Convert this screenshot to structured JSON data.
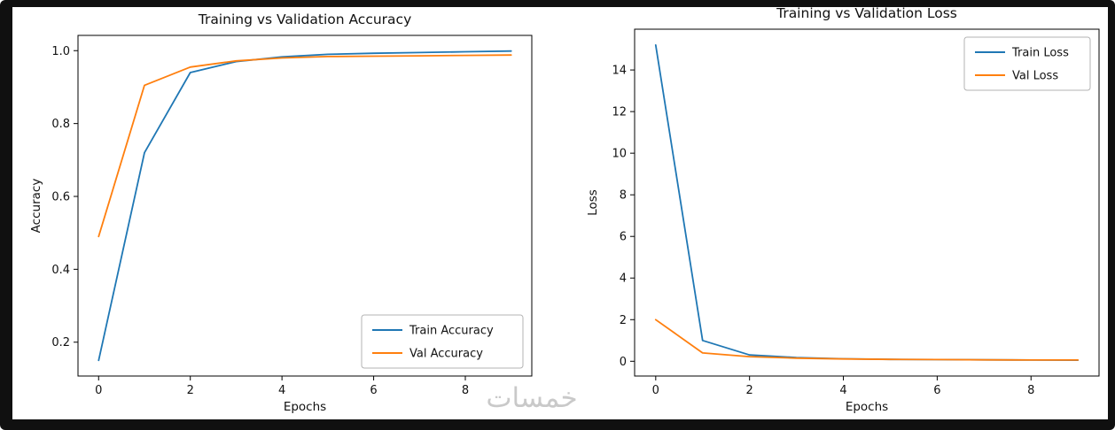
{
  "watermark": "خمسات",
  "colors": {
    "train": "#1f77b4",
    "val": "#ff7f0e"
  },
  "chart_data": [
    {
      "type": "line",
      "title": "Training vs Validation Accuracy",
      "xlabel": "Epochs",
      "ylabel": "Accuracy",
      "x": [
        0,
        1,
        2,
        3,
        4,
        5,
        6,
        7,
        8,
        9
      ],
      "series": [
        {
          "name": "Train Accuracy",
          "color": "#1f77b4",
          "values": [
            0.15,
            0.72,
            0.94,
            0.97,
            0.983,
            0.99,
            0.993,
            0.995,
            0.997,
            0.999
          ]
        },
        {
          "name": "Val Accuracy",
          "color": "#ff7f0e",
          "values": [
            0.49,
            0.905,
            0.955,
            0.972,
            0.98,
            0.984,
            0.985,
            0.986,
            0.987,
            0.988
          ]
        }
      ],
      "xlim": [
        -0.45,
        9.45
      ],
      "ylim": [
        0.107,
        1.042
      ],
      "xticks": [
        0,
        2,
        4,
        6,
        8
      ],
      "xtick_labels": [
        "0",
        "2",
        "4",
        "6",
        "8"
      ],
      "yticks": [
        0.2,
        0.4,
        0.6,
        0.8,
        1.0
      ],
      "ytick_labels": [
        "0.2",
        "0.4",
        "0.6",
        "0.8",
        "1.0"
      ],
      "legend_position": "lower-right",
      "grid": false
    },
    {
      "type": "line",
      "title": "Training vs Validation Loss",
      "xlabel": "Epochs",
      "ylabel": "Loss",
      "x": [
        0,
        1,
        2,
        3,
        4,
        5,
        6,
        7,
        8,
        9
      ],
      "series": [
        {
          "name": "Train Loss",
          "color": "#1f77b4",
          "values": [
            15.2,
            1.0,
            0.3,
            0.18,
            0.12,
            0.09,
            0.08,
            0.07,
            0.06,
            0.05
          ]
        },
        {
          "name": "Val Loss",
          "color": "#ff7f0e",
          "values": [
            2.0,
            0.4,
            0.22,
            0.15,
            0.11,
            0.09,
            0.08,
            0.07,
            0.06,
            0.06
          ]
        }
      ],
      "xlim": [
        -0.45,
        9.45
      ],
      "ylim": [
        -0.71,
        15.96
      ],
      "xticks": [
        0,
        2,
        4,
        6,
        8
      ],
      "xtick_labels": [
        "0",
        "2",
        "4",
        "6",
        "8"
      ],
      "yticks": [
        0,
        2,
        4,
        6,
        8,
        10,
        12,
        14
      ],
      "ytick_labels": [
        "0",
        "2",
        "4",
        "6",
        "8",
        "10",
        "12",
        "14"
      ],
      "legend_position": "upper-right",
      "grid": false
    }
  ]
}
